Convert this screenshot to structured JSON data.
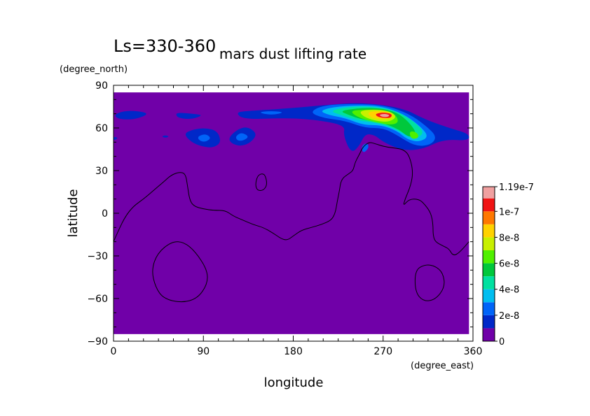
{
  "chart_data": {
    "type": "heatmap",
    "title": "mars dust lifting rate",
    "subtitle": "Ls=330-360",
    "xlabel": "longitude",
    "ylabel": "latitude",
    "x_units": "(degree_east)",
    "y_units": "(degree_north)",
    "xlim": [
      0,
      360
    ],
    "ylim": [
      -90,
      90
    ],
    "x_ticks": [
      0,
      90,
      180,
      270,
      360
    ],
    "y_ticks": [
      -90,
      -60,
      -30,
      0,
      30,
      60,
      90
    ],
    "data_extent": {
      "x": [
        0,
        356
      ],
      "y": [
        -85,
        85
      ]
    },
    "background_value": 0,
    "colorbar": {
      "levels": [
        0,
        1e-08,
        2e-08,
        3e-08,
        4e-08,
        5e-08,
        6e-08,
        7e-08,
        8e-08,
        9e-08,
        1e-07,
        1.1e-07,
        1.19e-07
      ],
      "labels": [
        {
          "value": 0,
          "text": "0"
        },
        {
          "value": 2e-08,
          "text": "2e-8"
        },
        {
          "value": 4e-08,
          "text": "4e-8"
        },
        {
          "value": 6e-08,
          "text": "6e-8"
        },
        {
          "value": 8e-08,
          "text": "8e-8"
        },
        {
          "value": 1e-07,
          "text": "1e-7"
        },
        {
          "value": 1.19e-07,
          "text": "1.19e-7"
        }
      ],
      "colors": [
        "#7000a8",
        "#0028c8",
        "#0064f8",
        "#00bef0",
        "#00e1a0",
        "#00c83c",
        "#50f000",
        "#c8f000",
        "#ffd200",
        "#ff7800",
        "#f01414",
        "#f0a0a0"
      ]
    },
    "lifting_regions": [
      {
        "level": 1,
        "points": [
          [
            0,
            69
          ],
          [
            10,
            72
          ],
          [
            24,
            72
          ],
          [
            36,
            70
          ],
          [
            22,
            66
          ],
          [
            6,
            66
          ]
        ]
      },
      {
        "level": 1,
        "points": [
          [
            62,
            71
          ],
          [
            80,
            70
          ],
          [
            90,
            69
          ],
          [
            78,
            66
          ],
          [
            64,
            67
          ]
        ]
      },
      {
        "level": 1,
        "points": [
          [
            0,
            54
          ],
          [
            5,
            53
          ],
          [
            0,
            51
          ]
        ]
      },
      {
        "level": 1,
        "points": [
          [
            70,
            56
          ],
          [
            80,
            59
          ],
          [
            92,
            60
          ],
          [
            104,
            58
          ],
          [
            108,
            50
          ],
          [
            100,
            46
          ],
          [
            88,
            47
          ],
          [
            78,
            50
          ]
        ]
      },
      {
        "level": 2,
        "points": [
          [
            84,
            54
          ],
          [
            92,
            56
          ],
          [
            98,
            53
          ],
          [
            92,
            50
          ],
          [
            86,
            51
          ]
        ]
      },
      {
        "level": 1,
        "points": [
          [
            48,
            54
          ],
          [
            52,
            55
          ],
          [
            56,
            54
          ],
          [
            52,
            53
          ]
        ]
      },
      {
        "level": 1,
        "points": [
          [
            115,
            53
          ],
          [
            124,
            59
          ],
          [
            134,
            61
          ],
          [
            144,
            56
          ],
          [
            138,
            50
          ],
          [
            128,
            47
          ],
          [
            118,
            49
          ]
        ]
      },
      {
        "level": 2,
        "points": [
          [
            122,
            54
          ],
          [
            128,
            57
          ],
          [
            136,
            54
          ],
          [
            130,
            51
          ],
          [
            124,
            51
          ]
        ]
      },
      {
        "level": 1,
        "points": [
          [
            122,
            71
          ],
          [
            136,
            72
          ],
          [
            180,
            74
          ],
          [
            210,
            76
          ],
          [
            250,
            78
          ],
          [
            290,
            74
          ],
          [
            312,
            66
          ],
          [
            336,
            60
          ],
          [
            356,
            56
          ],
          [
            356,
            51
          ],
          [
            330,
            52
          ],
          [
            310,
            45
          ],
          [
            290,
            44
          ],
          [
            270,
            50
          ],
          [
            262,
            55
          ],
          [
            252,
            56
          ],
          [
            246,
            47
          ],
          [
            238,
            42
          ],
          [
            230,
            55
          ],
          [
            232,
            62
          ],
          [
            200,
            66
          ],
          [
            170,
            67
          ],
          [
            130,
            66
          ]
        ]
      },
      {
        "level": 2,
        "points": [
          [
            144,
            71
          ],
          [
            158,
            72
          ],
          [
            172,
            71
          ],
          [
            158,
            69
          ]
        ]
      },
      {
        "level": 2,
        "points": [
          [
            196,
            71
          ],
          [
            210,
            76
          ],
          [
            240,
            77
          ],
          [
            272,
            76
          ],
          [
            296,
            70
          ],
          [
            312,
            62
          ],
          [
            324,
            54
          ],
          [
            318,
            48
          ],
          [
            302,
            47
          ],
          [
            284,
            55
          ],
          [
            270,
            60
          ],
          [
            252,
            60
          ],
          [
            232,
            65
          ],
          [
            210,
            67
          ]
        ]
      },
      {
        "level": 2,
        "points": [
          [
            248,
            47
          ],
          [
            254,
            50
          ],
          [
            256,
            46
          ],
          [
            250,
            42
          ]
        ]
      },
      {
        "level": 3,
        "points": [
          [
            206,
            72
          ],
          [
            222,
            75
          ],
          [
            250,
            76
          ],
          [
            270,
            75
          ],
          [
            290,
            70
          ],
          [
            306,
            62
          ],
          [
            316,
            54
          ],
          [
            306,
            50
          ],
          [
            294,
            52
          ],
          [
            284,
            58
          ],
          [
            268,
            62
          ],
          [
            250,
            62
          ],
          [
            232,
            67
          ],
          [
            216,
            69
          ]
        ]
      },
      {
        "level": 4,
        "points": [
          [
            216,
            72
          ],
          [
            236,
            75
          ],
          [
            260,
            75
          ],
          [
            284,
            72
          ],
          [
            302,
            64
          ],
          [
            312,
            56
          ],
          [
            300,
            52
          ],
          [
            286,
            58
          ],
          [
            268,
            63
          ],
          [
            246,
            65
          ],
          [
            228,
            69
          ]
        ]
      },
      {
        "level": 5,
        "points": [
          [
            226,
            72
          ],
          [
            246,
            74
          ],
          [
            266,
            74
          ],
          [
            284,
            71
          ],
          [
            296,
            64
          ],
          [
            304,
            56
          ],
          [
            296,
            53
          ],
          [
            286,
            59
          ],
          [
            268,
            64
          ],
          [
            248,
            66
          ],
          [
            236,
            69
          ]
        ]
      },
      {
        "level": 6,
        "points": [
          [
            236,
            72
          ],
          [
            252,
            73
          ],
          [
            270,
            73
          ],
          [
            282,
            70
          ],
          [
            286,
            64
          ],
          [
            278,
            62
          ],
          [
            262,
            64
          ],
          [
            246,
            67
          ]
        ]
      },
      {
        "level": 6,
        "points": [
          [
            296,
            58
          ],
          [
            304,
            57
          ],
          [
            306,
            53
          ],
          [
            298,
            52
          ]
        ]
      },
      {
        "level": 7,
        "points": [
          [
            246,
            72
          ],
          [
            260,
            73
          ],
          [
            276,
            72
          ],
          [
            284,
            68
          ],
          [
            276,
            64
          ],
          [
            262,
            65
          ],
          [
            250,
            68
          ]
        ]
      },
      {
        "level": 8,
        "points": [
          [
            254,
            71
          ],
          [
            264,
            72
          ],
          [
            278,
            71
          ],
          [
            280,
            67
          ],
          [
            270,
            66
          ],
          [
            258,
            67
          ]
        ]
      },
      {
        "level": 10,
        "points": [
          [
            262,
            70
          ],
          [
            270,
            71
          ],
          [
            279,
            70
          ],
          [
            278,
            67
          ],
          [
            270,
            67
          ],
          [
            264,
            68
          ]
        ]
      },
      {
        "level": 11,
        "points": [
          [
            266,
            69.5
          ],
          [
            272,
            70
          ],
          [
            277,
            69
          ],
          [
            274,
            67.5
          ],
          [
            268,
            68
          ]
        ]
      }
    ],
    "topography_contours": [
      {
        "points": [
          [
            0,
            -20
          ],
          [
            5,
            -12
          ],
          [
            12,
            -2
          ],
          [
            20,
            5
          ],
          [
            30,
            10
          ],
          [
            40,
            16
          ],
          [
            50,
            22
          ],
          [
            58,
            27
          ],
          [
            66,
            29
          ],
          [
            72,
            28
          ],
          [
            74,
            20
          ],
          [
            76,
            10
          ],
          [
            80,
            5
          ],
          [
            90,
            3
          ],
          [
            100,
            2
          ],
          [
            112,
            2
          ],
          [
            120,
            -2
          ],
          [
            130,
            -5
          ],
          [
            140,
            -8
          ],
          [
            150,
            -10
          ],
          [
            160,
            -14
          ],
          [
            168,
            -18
          ],
          [
            174,
            -19
          ],
          [
            180,
            -16
          ],
          [
            188,
            -12
          ],
          [
            198,
            -10
          ],
          [
            208,
            -8
          ],
          [
            218,
            -5
          ],
          [
            222,
            0
          ],
          [
            224,
            8
          ],
          [
            226,
            15
          ],
          [
            228,
            24
          ],
          [
            236,
            28
          ],
          [
            240,
            30
          ],
          [
            242,
            36
          ],
          [
            246,
            41
          ],
          [
            250,
            47
          ],
          [
            256,
            50
          ],
          [
            262,
            49
          ],
          [
            270,
            47
          ],
          [
            280,
            46
          ],
          [
            290,
            45
          ],
          [
            296,
            41
          ],
          [
            300,
            30
          ],
          [
            298,
            20
          ],
          [
            292,
            10
          ],
          [
            290,
            5
          ],
          [
            296,
            10
          ],
          [
            306,
            10
          ],
          [
            312,
            6
          ],
          [
            318,
            0
          ],
          [
            320,
            -8
          ],
          [
            320,
            -15
          ],
          [
            322,
            -20
          ],
          [
            330,
            -23
          ],
          [
            336,
            -25
          ],
          [
            340,
            -30
          ],
          [
            346,
            -28
          ],
          [
            356,
            -20
          ]
        ]
      },
      {
        "points": [
          [
            142,
            20
          ],
          [
            144,
            26
          ],
          [
            148,
            28
          ],
          [
            152,
            27
          ],
          [
            154,
            20
          ],
          [
            150,
            16
          ],
          [
            144,
            16
          ]
        ]
      },
      {
        "points": [
          [
            38,
            -40
          ],
          [
            44,
            -28
          ],
          [
            58,
            -20
          ],
          [
            70,
            -20
          ],
          [
            82,
            -27
          ],
          [
            94,
            -40
          ],
          [
            94,
            -50
          ],
          [
            84,
            -60
          ],
          [
            68,
            -63
          ],
          [
            50,
            -60
          ],
          [
            42,
            -52
          ]
        ]
      },
      {
        "points": [
          [
            302,
            -40
          ],
          [
            312,
            -36
          ],
          [
            322,
            -37
          ],
          [
            330,
            -42
          ],
          [
            332,
            -52
          ],
          [
            322,
            -61
          ],
          [
            310,
            -62
          ],
          [
            302,
            -55
          ]
        ]
      }
    ]
  }
}
